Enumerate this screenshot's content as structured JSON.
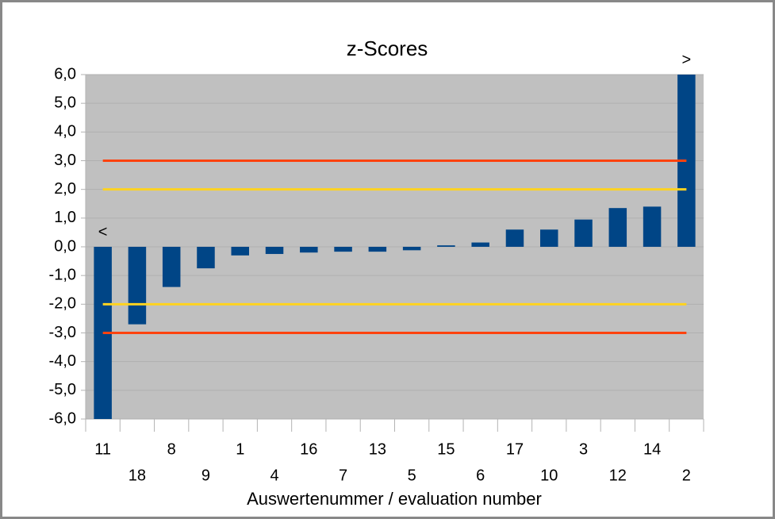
{
  "chart_data": {
    "type": "bar",
    "title": "z-Scores",
    "x_label": "Auswertenummer / evaluation number",
    "categories": [
      "11",
      "18",
      "8",
      "9",
      "1",
      "4",
      "16",
      "7",
      "13",
      "5",
      "15",
      "6",
      "17",
      "10",
      "3",
      "12",
      "14",
      "2"
    ],
    "values": [
      -6,
      -2.7,
      -1.4,
      -0.75,
      -0.3,
      -0.25,
      -0.2,
      -0.17,
      -0.17,
      -0.12,
      0.05,
      0.15,
      0.6,
      0.6,
      0.95,
      1.35,
      1.4,
      6
    ],
    "color": "#004586",
    "ylim": [
      -6,
      6
    ],
    "yticks": [
      {
        "value": -6,
        "label": "-6,0"
      },
      {
        "value": -5,
        "label": "-5,0"
      },
      {
        "value": -4,
        "label": "-4,0"
      },
      {
        "value": -3,
        "label": "-3,0"
      },
      {
        "value": -2,
        "label": "-2,0"
      },
      {
        "value": -1,
        "label": "-1,0"
      },
      {
        "value": 0,
        "label": "0,0"
      },
      {
        "value": 1,
        "label": "1,0"
      },
      {
        "value": 2,
        "label": "2,0"
      },
      {
        "value": 3,
        "label": "3,0"
      },
      {
        "value": 4,
        "label": "4,0"
      },
      {
        "value": 5,
        "label": "5,0"
      },
      {
        "value": 6,
        "label": "6,0"
      }
    ],
    "grid": true,
    "reference_lines": [
      {
        "value": 3,
        "color": "#ff420e"
      },
      {
        "value": 2,
        "color": "#ffd320"
      },
      {
        "value": -2,
        "color": "#ffd320"
      },
      {
        "value": -3,
        "color": "#ff420e"
      }
    ],
    "annotations": [
      {
        "text": "<",
        "category": "11"
      },
      {
        "text": ">",
        "category": "2"
      }
    ]
  }
}
